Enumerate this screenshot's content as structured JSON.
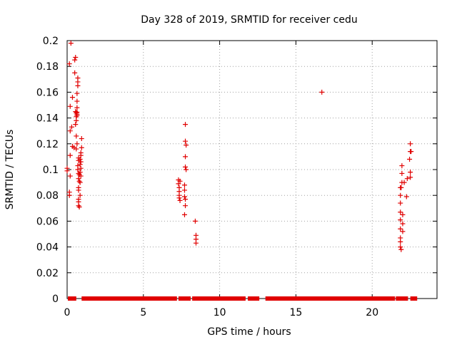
{
  "chart_data": {
    "type": "scatter",
    "title": "Day 328 of 2019, SRMTID for receiver cedu",
    "xlabel": "GPS time / hours",
    "ylabel": "SRMTID / TECUs",
    "xlim": [
      0,
      24.25
    ],
    "ylim": [
      0,
      0.2
    ],
    "x_ticks": [
      0,
      5,
      10,
      15,
      20
    ],
    "y_ticks": [
      0,
      0.02,
      0.04,
      0.06,
      0.08,
      0.1,
      0.12,
      0.14,
      0.16,
      0.18,
      0.2
    ],
    "x_tick_labels": [
      "0",
      "5",
      "10",
      "15",
      "20"
    ],
    "y_tick_labels": [
      "0",
      "0.02",
      "0.04",
      "0.06",
      "0.08",
      "0.1",
      "0.12",
      "0.14",
      "0.16",
      "0.18",
      "0.2"
    ],
    "grid": true,
    "marker": "+",
    "series": [
      {
        "name": "SRMTID",
        "color": "#e00000",
        "points": [
          [
            0.0,
            0.101
          ],
          [
            0.0,
            0.099
          ],
          [
            0.15,
            0.0825
          ],
          [
            0.15,
            0.08
          ],
          [
            0.2,
            0.095
          ],
          [
            0.2,
            0.111
          ],
          [
            0.2,
            0.13
          ],
          [
            0.2,
            0.149
          ],
          [
            0.15,
            0.182
          ],
          [
            0.25,
            0.198
          ],
          [
            0.3,
            0.133
          ],
          [
            0.35,
            0.118
          ],
          [
            0.35,
            0.156
          ],
          [
            0.45,
            0.117
          ],
          [
            0.5,
            0.175
          ],
          [
            0.5,
            0.185
          ],
          [
            0.55,
            0.187
          ],
          [
            0.55,
            0.135
          ],
          [
            0.55,
            0.145
          ],
          [
            0.6,
            0.126
          ],
          [
            0.6,
            0.141
          ],
          [
            0.6,
            0.144
          ],
          [
            0.6,
            0.138
          ],
          [
            0.6,
            0.116
          ],
          [
            0.65,
            0.12
          ],
          [
            0.65,
            0.143
          ],
          [
            0.65,
            0.1445
          ],
          [
            0.65,
            0.142
          ],
          [
            0.65,
            0.148
          ],
          [
            0.65,
            0.153
          ],
          [
            0.65,
            0.159
          ],
          [
            0.7,
            0.165
          ],
          [
            0.7,
            0.168
          ],
          [
            0.7,
            0.171
          ],
          [
            0.75,
            0.107
          ],
          [
            0.75,
            0.109
          ],
          [
            0.7,
            0.103
          ],
          [
            0.7,
            0.1
          ],
          [
            0.75,
            0.097
          ],
          [
            0.75,
            0.093
          ],
          [
            0.75,
            0.086
          ],
          [
            0.75,
            0.084
          ],
          [
            0.75,
            0.077
          ],
          [
            0.75,
            0.075
          ],
          [
            0.75,
            0.072
          ],
          [
            0.8,
            0.071
          ],
          [
            0.8,
            0.091
          ],
          [
            0.8,
            0.096
          ],
          [
            0.85,
            0.08
          ],
          [
            0.85,
            0.09
          ],
          [
            0.85,
            0.098
          ],
          [
            0.85,
            0.104
          ],
          [
            0.85,
            0.108
          ],
          [
            0.9,
            0.113
          ],
          [
            0.9,
            0.111
          ],
          [
            0.9,
            0.106
          ],
          [
            0.9,
            0.101
          ],
          [
            0.9,
            0.095
          ],
          [
            0.95,
            0.117
          ],
          [
            0.95,
            0.124
          ],
          [
            7.3,
            0.092
          ],
          [
            7.3,
            0.089
          ],
          [
            7.35,
            0.086
          ],
          [
            7.35,
            0.083
          ],
          [
            7.35,
            0.08
          ],
          [
            7.35,
            0.078
          ],
          [
            7.4,
            0.091
          ],
          [
            7.4,
            0.076
          ],
          [
            7.75,
            0.135
          ],
          [
            7.75,
            0.122
          ],
          [
            7.8,
            0.119
          ],
          [
            7.75,
            0.11
          ],
          [
            7.75,
            0.102
          ],
          [
            7.8,
            0.1
          ],
          [
            7.7,
            0.088
          ],
          [
            7.7,
            0.084
          ],
          [
            7.7,
            0.079
          ],
          [
            7.75,
            0.077
          ],
          [
            7.75,
            0.072
          ],
          [
            7.7,
            0.065
          ],
          [
            8.4,
            0.06
          ],
          [
            8.45,
            0.049
          ],
          [
            8.45,
            0.046
          ],
          [
            8.45,
            0.043
          ],
          [
            16.7,
            0.16
          ],
          [
            21.85,
            0.086
          ],
          [
            21.85,
            0.08
          ],
          [
            21.85,
            0.074
          ],
          [
            21.85,
            0.067
          ],
          [
            21.85,
            0.061
          ],
          [
            21.85,
            0.054
          ],
          [
            21.85,
            0.047
          ],
          [
            21.85,
            0.044
          ],
          [
            21.85,
            0.04
          ],
          [
            21.9,
            0.038
          ],
          [
            21.9,
            0.086
          ],
          [
            21.95,
            0.09
          ],
          [
            21.95,
            0.097
          ],
          [
            21.95,
            0.103
          ],
          [
            22.0,
            0.065
          ],
          [
            22.0,
            0.058
          ],
          [
            22.0,
            0.052
          ],
          [
            22.1,
            0.09
          ],
          [
            22.25,
            0.079
          ],
          [
            22.3,
            0.093
          ],
          [
            22.5,
            0.12
          ],
          [
            22.5,
            0.114
          ],
          [
            22.45,
            0.108
          ],
          [
            22.55,
            0.114
          ],
          [
            22.5,
            0.098
          ],
          [
            22.5,
            0.094
          ]
        ]
      }
    ],
    "zero_segments": [
      [
        0.05,
        0.55
      ],
      [
        0.5,
        0.6
      ],
      [
        0.95,
        7.2
      ],
      [
        7.3,
        8.1
      ],
      [
        8.2,
        11.7
      ],
      [
        11.85,
        12.6
      ],
      [
        13.0,
        21.5
      ],
      [
        21.55,
        22.35
      ],
      [
        22.5,
        22.95
      ]
    ]
  }
}
